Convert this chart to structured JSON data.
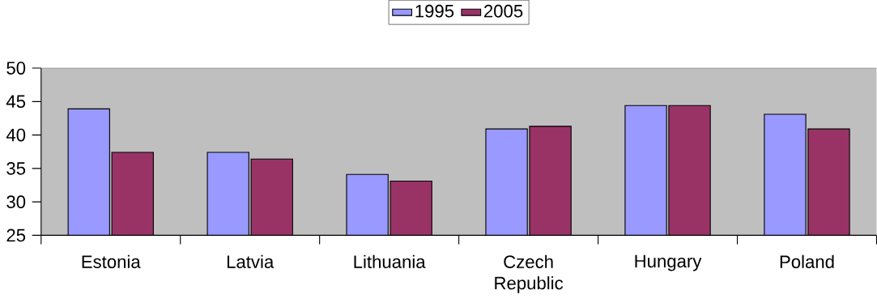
{
  "chart_data": {
    "type": "bar",
    "categories": [
      "Estonia",
      "Latvia",
      "Lithuania",
      "Czech Republic",
      "Hungary",
      "Poland"
    ],
    "series": [
      {
        "name": "1995",
        "color": "#9999ff",
        "values": [
          43.9,
          37.4,
          34.1,
          40.9,
          44.4,
          43.1
        ]
      },
      {
        "name": "2005",
        "color": "#993366",
        "values": [
          37.4,
          36.4,
          33.1,
          41.3,
          44.4,
          40.9
        ]
      }
    ],
    "ylim": [
      25,
      50
    ],
    "yticks": [
      25,
      30,
      35,
      40,
      45,
      50
    ],
    "grid": false,
    "legend": "top"
  }
}
